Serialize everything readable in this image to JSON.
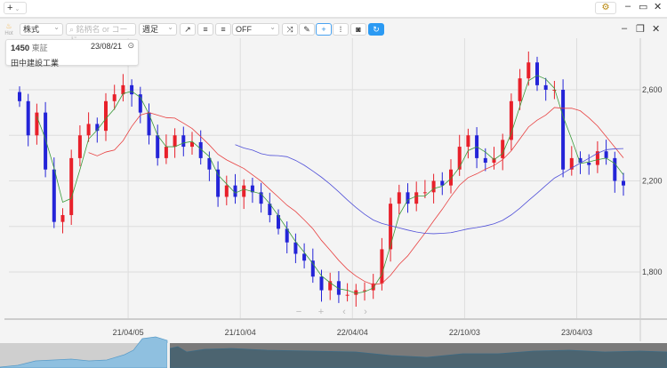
{
  "topbar": {
    "add_label": "+",
    "add_caret": "⌄",
    "settings_icon": "⚙",
    "minimize": "–",
    "maximize": "▭",
    "close": "✕"
  },
  "toolbar": {
    "hot_label": "Hot",
    "market_select": "株式",
    "search_placeholder": "銘柄名 or コード",
    "period_select": "週足",
    "indicator_select": "OFF",
    "win_minimize": "–",
    "win_restore": "❐",
    "win_close": "✕"
  },
  "info": {
    "code": "1450",
    "exchange": "東証",
    "date": "23/08/21",
    "name": "田中建設工業"
  },
  "nav_controls": {
    "zoom_out": "−",
    "zoom_in": "+",
    "prev": "‹",
    "next": "›"
  },
  "colors": {
    "up": "#e8202a",
    "down": "#2424d8",
    "ma_short": "#3a9a3a",
    "ma_mid": "#e84040",
    "ma_long": "#5050d8"
  },
  "chart_data": {
    "type": "candlestick",
    "y_ticks": [
      "2,600",
      "2,200",
      "1,800"
    ],
    "y_tick_values": [
      2600,
      2200,
      1800
    ],
    "ylim": [
      1680,
      2800
    ],
    "x_ticks": [
      "21/04/05",
      "21/10/04",
      "22/04/04",
      "22/10/03",
      "23/04/03"
    ],
    "x_tick_index": [
      13,
      26,
      39,
      52,
      65
    ],
    "closes": [
      2550,
      2400,
      2500,
      2250,
      2020,
      2050,
      2300,
      2400,
      2450,
      2420,
      2550,
      2580,
      2620,
      2580,
      2500,
      2400,
      2300,
      2350,
      2400,
      2350,
      2370,
      2300,
      2250,
      2130,
      2180,
      2130,
      2180,
      2150,
      2100,
      2050,
      1990,
      1930,
      1880,
      1850,
      1780,
      1720,
      1760,
      1700,
      1700,
      1720,
      1720,
      1750,
      1900,
      2100,
      2150,
      2100,
      2150,
      2150,
      2200,
      2180,
      2250,
      2350,
      2400,
      2300,
      2280,
      2300,
      2380,
      2550,
      2650,
      2720,
      2620,
      2600,
      2600,
      2250,
      2300,
      2280,
      2270,
      2330,
      2300,
      2200,
      2180
    ],
    "ma_periods": [
      3,
      9,
      26
    ]
  }
}
